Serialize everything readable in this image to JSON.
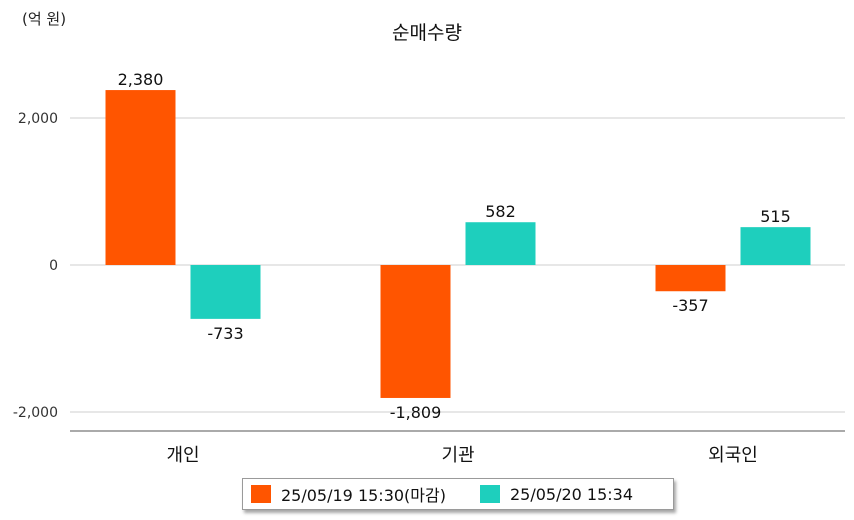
{
  "chart_data": {
    "type": "bar",
    "title": "순매수량",
    "unit_label": "(억 원)",
    "categories": [
      "개인",
      "기관",
      "외국인"
    ],
    "series": [
      {
        "name": "25/05/19 15:30(마감)",
        "color": "#ff5500",
        "values": [
          2380,
          -1809,
          -357
        ],
        "labels": [
          "2,380",
          "-1,809",
          "-357"
        ]
      },
      {
        "name": "25/05/20 15:34",
        "color": "#1ecfbd",
        "values": [
          -733,
          582,
          515
        ],
        "labels": [
          "-733",
          "582",
          "515"
        ]
      }
    ],
    "y_ticks": [
      {
        "value": 2000,
        "label": "2,000"
      },
      {
        "value": 0,
        "label": "0"
      },
      {
        "value": -2000,
        "label": "-2,000"
      }
    ],
    "grid": true,
    "legend_position": "bottom"
  }
}
